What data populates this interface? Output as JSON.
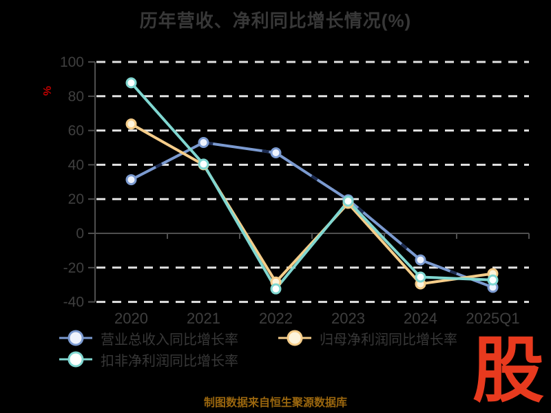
{
  "page": {
    "background": "#000000"
  },
  "chart_data": {
    "type": "line",
    "title": "历年营收、净利同比增长情况(%)",
    "y_axis_name": "%",
    "y_axis_name_color": "#c40000",
    "categories": [
      "2020",
      "2021",
      "2022",
      "2023",
      "2024",
      "2025Q1"
    ],
    "y_ticks": [
      100,
      80,
      60,
      40,
      20,
      0,
      -20,
      -40
    ],
    "ylim": [
      -40,
      100
    ],
    "grid": "dashed-horizontal",
    "legend_position": "bottom-left",
    "text_color": "#3f3f3f",
    "axis_color": "#4f4f4f",
    "gridline_color": "#e2e2e2",
    "overlay_dash_color": "#1d2c52",
    "series": [
      {
        "name": "营业总收入同比增长率",
        "color": "#7b9ad0",
        "marker_fill": "#eef3fd",
        "values": [
          31.3,
          53.0,
          47.0,
          19.6,
          -15.5,
          -31.5
        ]
      },
      {
        "name": "归母净利润同比增长率",
        "color": "#f5cd8a",
        "marker_fill": "#fdf4dc",
        "values": [
          63.8,
          40.0,
          -28.4,
          17.5,
          -29.5,
          -23.5
        ]
      },
      {
        "name": "扣非净利润同比增长率",
        "color": "#80d7d1",
        "marker_fill": "#ffffff",
        "values": [
          87.8,
          40.4,
          -32.4,
          18.8,
          -25.5,
          -27.2
        ]
      }
    ]
  },
  "footer": {
    "source": "制图数据来自恒生聚源数据库"
  },
  "logo": {
    "text": "股",
    "color": "#e83a1e"
  }
}
